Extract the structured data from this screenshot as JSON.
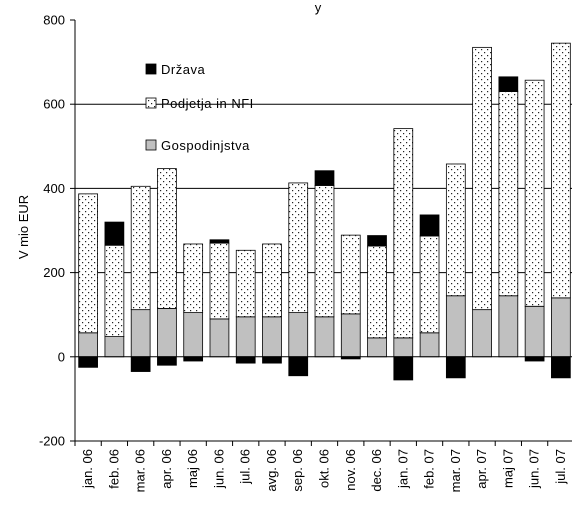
{
  "chart_data": {
    "type": "bar",
    "stacked": true,
    "title_fragment": "y",
    "ylabel": "V mio EUR",
    "ylim": [
      -200,
      800
    ],
    "yticks": [
      "-200",
      "0",
      "200",
      "400",
      "600",
      "800"
    ],
    "grid": true,
    "legend_position": "top-left",
    "categories": [
      "jan. 06",
      "feb. 06",
      "mar. 06",
      "apr. 06",
      "maj 06",
      "jun. 06",
      "jul. 06",
      "avg. 06",
      "sep. 06",
      "okt. 06",
      "nov. 06",
      "dec. 06",
      "jan. 07",
      "feb. 07",
      "mar. 07",
      "apr. 07",
      "maj 07",
      "jun. 07",
      "jul. 07"
    ],
    "series": [
      {
        "name": "Gospodinjstva",
        "pattern": "gray",
        "color": "#c0c0c0",
        "values": [
          57,
          48,
          112,
          115,
          105,
          90,
          95,
          95,
          105,
          95,
          102,
          45,
          45,
          57,
          145,
          112,
          145,
          120,
          140
        ]
      },
      {
        "name": "Podjetja in NFI",
        "pattern": "dotted",
        "color": "#ffffff",
        "values": [
          330,
          217,
          293,
          332,
          163,
          180,
          158,
          173,
          308,
          312,
          187,
          218,
          497,
          230,
          313,
          623,
          485,
          537,
          605
        ]
      },
      {
        "name": "Država",
        "pattern": "black",
        "color": "#000000",
        "values": [
          -25,
          55,
          -35,
          -20,
          -10,
          8,
          -15,
          -15,
          -45,
          35,
          -5,
          25,
          -55,
          50,
          -50,
          0,
          35,
          -10,
          -50
        ]
      }
    ],
    "legend": [
      "Država",
      "Podjetja in NFI",
      "Gospodinjstva"
    ]
  }
}
